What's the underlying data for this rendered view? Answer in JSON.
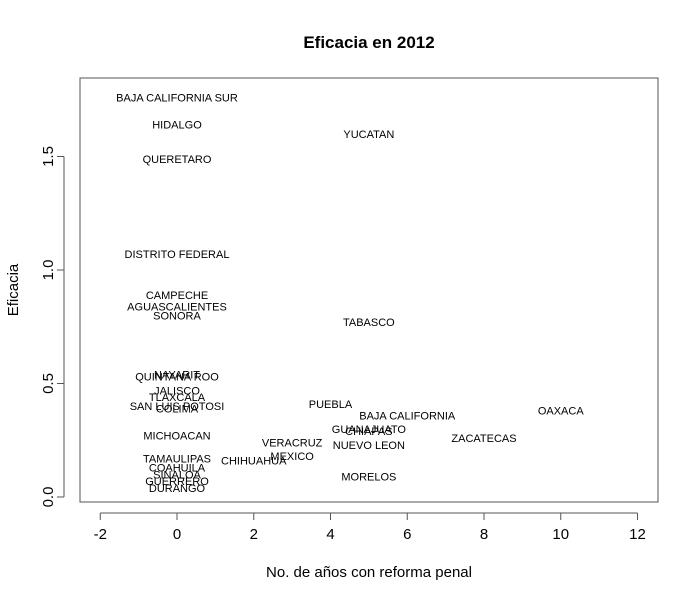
{
  "chart_data": {
    "type": "scatter",
    "title": "Eficacia en 2012",
    "xlabel": "No. de años con reforma penal",
    "ylabel": "Eficacia",
    "xlim": [
      -2,
      12
    ],
    "ylim": [
      0,
      1.7
    ],
    "xticks": [
      -2,
      0,
      2,
      4,
      6,
      8,
      10,
      12
    ],
    "yticks": [
      0.0,
      0.5,
      1.0,
      1.5
    ],
    "xtick_labels": [
      "-2",
      "0",
      "2",
      "4",
      "6",
      "8",
      "10",
      "12"
    ],
    "ytick_labels": [
      "0.0",
      "0.5",
      "1.0",
      "1.5"
    ],
    "grid": false,
    "points": [
      {
        "label": "BAJA CALIFORNIA SUR",
        "x": 0,
        "y": 1.76
      },
      {
        "label": "HIDALGO",
        "x": 0,
        "y": 1.64
      },
      {
        "label": "YUCATAN",
        "x": 5,
        "y": 1.6
      },
      {
        "label": "QUERETARO",
        "x": 0,
        "y": 1.49
      },
      {
        "label": "DISTRITO FEDERAL",
        "x": 0,
        "y": 1.07
      },
      {
        "label": "CAMPECHE",
        "x": 0,
        "y": 0.89
      },
      {
        "label": "AGUASCALIENTES",
        "x": 0,
        "y": 0.84
      },
      {
        "label": "SONORA",
        "x": 0,
        "y": 0.8
      },
      {
        "label": "TABASCO",
        "x": 5,
        "y": 0.77
      },
      {
        "label": "NAYARIT",
        "x": 0,
        "y": 0.54
      },
      {
        "label": "QUINTANA ROO",
        "x": 0,
        "y": 0.53
      },
      {
        "label": "JALISCO",
        "x": 0,
        "y": 0.47
      },
      {
        "label": "TLAXCALA",
        "x": 0,
        "y": 0.44
      },
      {
        "label": "SAN LUIS POTOSI",
        "x": 0,
        "y": 0.4
      },
      {
        "label": "COLIMA",
        "x": 0,
        "y": 0.39
      },
      {
        "label": "PUEBLA",
        "x": 4,
        "y": 0.41
      },
      {
        "label": "OAXACA",
        "x": 10,
        "y": 0.38
      },
      {
        "label": "BAJA CALIFORNIA",
        "x": 6,
        "y": 0.36
      },
      {
        "label": "GUANAJUATO",
        "x": 5,
        "y": 0.3
      },
      {
        "label": "CHIAPAS",
        "x": 5,
        "y": 0.29
      },
      {
        "label": "MICHOACAN",
        "x": 0,
        "y": 0.27
      },
      {
        "label": "ZACATECAS",
        "x": 8,
        "y": 0.26
      },
      {
        "label": "VERACRUZ",
        "x": 3,
        "y": 0.24
      },
      {
        "label": "NUEVO LEON",
        "x": 5,
        "y": 0.23
      },
      {
        "label": "MEXICO",
        "x": 3,
        "y": 0.18
      },
      {
        "label": "TAMAULIPAS",
        "x": 0,
        "y": 0.17
      },
      {
        "label": "CHIHUAHUA",
        "x": 2,
        "y": 0.16
      },
      {
        "label": "COAHUILA",
        "x": 0,
        "y": 0.13
      },
      {
        "label": "SINALOA",
        "x": 0,
        "y": 0.1
      },
      {
        "label": "MORELOS",
        "x": 5,
        "y": 0.09
      },
      {
        "label": "GUERRERO",
        "x": 0,
        "y": 0.07
      },
      {
        "label": "DURANGO",
        "x": 0,
        "y": 0.04
      }
    ]
  }
}
